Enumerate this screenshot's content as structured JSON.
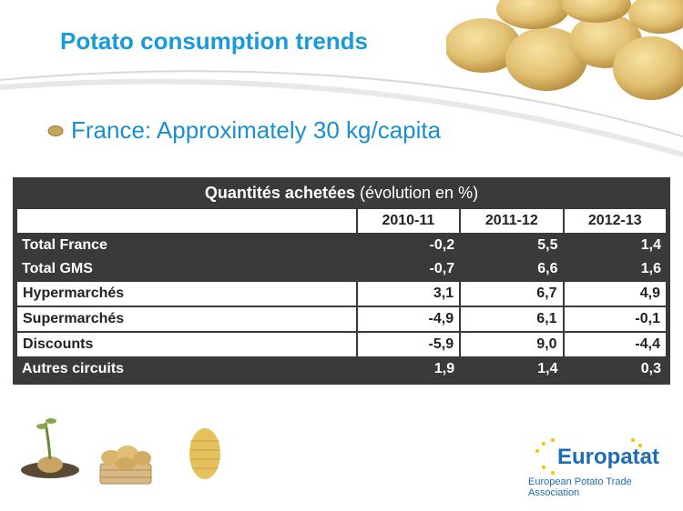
{
  "slide": {
    "title": "Potato consumption trends",
    "bullet": "France: Approximately  30 kg/capita"
  },
  "table": {
    "caption_bold": "Quantités achetées",
    "caption_rest": " (évolution en %)",
    "years": [
      "2010-11",
      "2011-12",
      "2012-13"
    ],
    "rows": [
      {
        "label": "Total France",
        "values": [
          "-0,2",
          "5,5",
          "1,4"
        ]
      },
      {
        "label": "Total GMS",
        "values": [
          "-0,7",
          "6,6",
          "1,6"
        ]
      },
      {
        "label": "Hypermarchés",
        "values": [
          "3,1",
          "6,7",
          "4,9"
        ]
      },
      {
        "label": "Supermarchés",
        "values": [
          "-4,9",
          "6,1",
          "-0,1"
        ]
      },
      {
        "label": "Discounts",
        "values": [
          "-5,9",
          "9,0",
          "-4,4"
        ]
      },
      {
        "label": "Autres circuits",
        "values": [
          "1,9",
          "1,4",
          "0,3"
        ]
      }
    ]
  },
  "logo": {
    "name": "Europatat",
    "tagline": "European Potato Trade Association"
  },
  "colors": {
    "title_blue": "#1a9ad9",
    "table_dark": "#3a3a3a",
    "logo_blue": "#1e6bb8",
    "star_yellow": "#f2c200"
  }
}
